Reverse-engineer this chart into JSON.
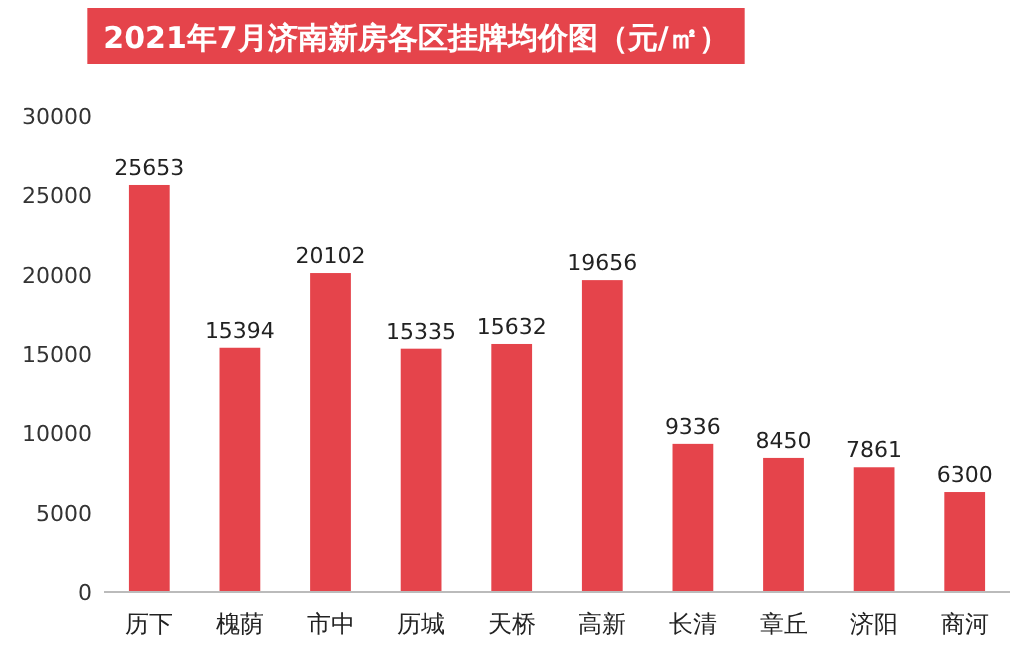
{
  "chart_data": {
    "type": "bar",
    "title": "2021年7月济南新房各区挂牌均价图（元/㎡）",
    "categories": [
      "历下",
      "槐荫",
      "市中",
      "历城",
      "天桥",
      "高新",
      "长清",
      "章丘",
      "济阳",
      "商河"
    ],
    "values": [
      25653,
      15394,
      20102,
      15335,
      15632,
      19656,
      9336,
      8450,
      7861,
      6300
    ],
    "color": "#e5444b",
    "ylim": [
      0,
      30000
    ],
    "yticks": [
      0,
      5000,
      10000,
      15000,
      20000,
      25000,
      30000
    ],
    "data_labels": true
  }
}
